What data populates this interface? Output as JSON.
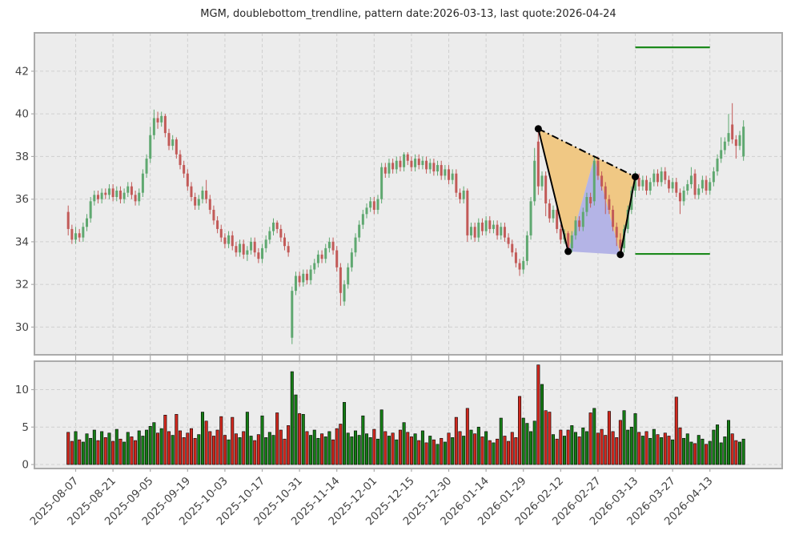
{
  "title": "MGM, doublebottom_trendline, pattern date:2026-03-13, last quote:2026-04-24",
  "colors": {
    "panel_bg": "#ececec",
    "grid": "#cfcfcf",
    "frame": "#ababab",
    "tick_text": "#444444",
    "candle_up": "#5fa870",
    "candle_down": "#c25a58",
    "vol_up": "#157d15",
    "vol_down": "#d0281e",
    "vol_edge": "#000000",
    "pattern_outer_fill": "#f0c884",
    "pattern_inner_fill": "#b4b4e6",
    "pattern_line": "#000000",
    "target_line": "#1c8a1c"
  },
  "chart_data": {
    "type": "candlestick+volume",
    "symbol": "MGM",
    "pattern": "doublebottom_trendline",
    "pattern_date": "2026-03-13",
    "last_quote_date": "2026-04-24",
    "price_axis": {
      "ticks": [
        30,
        32,
        34,
        36,
        38,
        40,
        42
      ],
      "range": [
        28.7,
        43.8
      ]
    },
    "volume_axis": {
      "ticks": [
        0,
        5,
        10
      ],
      "range": [
        0,
        14.3
      ]
    },
    "x_ticks": [
      {
        "label": "2025-08-07",
        "j": 2
      },
      {
        "label": "2025-08-21",
        "j": 12
      },
      {
        "label": "2025-09-05",
        "j": 22
      },
      {
        "label": "2025-09-19",
        "j": 32
      },
      {
        "label": "2025-10-03",
        "j": 42
      },
      {
        "label": "2025-10-17",
        "j": 52
      },
      {
        "label": "2025-10-31",
        "j": 62
      },
      {
        "label": "2025-11-14",
        "j": 72
      },
      {
        "label": "2025-12-01",
        "j": 82
      },
      {
        "label": "2025-12-15",
        "j": 92
      },
      {
        "label": "2025-12-30",
        "j": 102
      },
      {
        "label": "2026-01-14",
        "j": 112
      },
      {
        "label": "2026-01-29",
        "j": 122
      },
      {
        "label": "2026-02-12",
        "j": 132
      },
      {
        "label": "2026-02-27",
        "j": 142
      },
      {
        "label": "2026-03-13",
        "j": 152
      },
      {
        "label": "2026-03-27",
        "j": 162
      },
      {
        "label": "2026-04-13",
        "j": 172
      }
    ],
    "pattern_overlay": {
      "points": {
        "p1": {
          "j": 126,
          "price": 39.3
        },
        "b1": {
          "j": 134,
          "price": 33.55
        },
        "apex": {
          "j": 141,
          "price": 37.95
        },
        "b2": {
          "j": 148,
          "price": 33.4
        },
        "p5": {
          "j": 152,
          "price": 37.05
        }
      },
      "dots": [
        "p1",
        "b1",
        "b2",
        "p5"
      ],
      "target_lines": [
        {
          "price": 43.12,
          "from_j": 152,
          "to_j": 172
        },
        {
          "price": 33.43,
          "from_j": 152,
          "to_j": 172
        }
      ]
    },
    "candles": [
      [
        35.4,
        35.7,
        34.3,
        34.6
      ],
      [
        34.6,
        34.8,
        33.9,
        34.1
      ],
      [
        34.1,
        34.7,
        33.9,
        34.4
      ],
      [
        34.4,
        34.6,
        34.0,
        34.2
      ],
      [
        34.2,
        34.9,
        34.0,
        34.7
      ],
      [
        34.7,
        35.3,
        34.5,
        35.1
      ],
      [
        35.1,
        36.1,
        34.9,
        35.9
      ],
      [
        35.9,
        36.4,
        35.7,
        36.2
      ],
      [
        36.2,
        36.4,
        35.8,
        36.0
      ],
      [
        36.0,
        36.5,
        35.8,
        36.3
      ],
      [
        36.3,
        36.5,
        36.0,
        36.2
      ],
      [
        36.2,
        36.7,
        36.0,
        36.5
      ],
      [
        36.5,
        36.7,
        35.9,
        36.1
      ],
      [
        36.1,
        36.6,
        35.9,
        36.4
      ],
      [
        36.4,
        36.6,
        35.8,
        36.0
      ],
      [
        36.0,
        36.5,
        35.8,
        36.3
      ],
      [
        36.3,
        36.8,
        36.1,
        36.6
      ],
      [
        36.6,
        36.8,
        36.0,
        36.2
      ],
      [
        36.2,
        36.4,
        35.7,
        35.9
      ],
      [
        35.9,
        36.5,
        35.7,
        36.3
      ],
      [
        36.3,
        37.4,
        36.1,
        37.2
      ],
      [
        37.2,
        38.1,
        37.0,
        37.9
      ],
      [
        37.9,
        39.4,
        37.7,
        39.0
      ],
      [
        39.0,
        40.2,
        38.8,
        39.8
      ],
      [
        39.8,
        40.1,
        39.3,
        39.6
      ],
      [
        39.6,
        40.1,
        39.4,
        39.9
      ],
      [
        39.9,
        40.0,
        38.9,
        39.1
      ],
      [
        39.1,
        39.3,
        38.3,
        38.5
      ],
      [
        38.5,
        39.0,
        38.3,
        38.8
      ],
      [
        38.8,
        38.9,
        37.9,
        38.1
      ],
      [
        38.1,
        38.3,
        37.4,
        37.6
      ],
      [
        37.6,
        37.8,
        37.0,
        37.2
      ],
      [
        37.2,
        37.4,
        36.4,
        36.6
      ],
      [
        36.6,
        36.8,
        35.9,
        36.1
      ],
      [
        36.1,
        36.3,
        35.5,
        35.7
      ],
      [
        35.7,
        36.2,
        35.5,
        36.0
      ],
      [
        36.0,
        36.6,
        35.8,
        36.4
      ],
      [
        36.4,
        36.9,
        35.8,
        36.0
      ],
      [
        36.0,
        36.2,
        35.3,
        35.5
      ],
      [
        35.5,
        35.7,
        34.8,
        35.0
      ],
      [
        35.0,
        35.2,
        34.4,
        34.6
      ],
      [
        34.6,
        34.8,
        34.0,
        34.2
      ],
      [
        34.2,
        34.4,
        33.7,
        33.9
      ],
      [
        33.9,
        34.5,
        33.7,
        34.3
      ],
      [
        34.3,
        34.5,
        33.6,
        33.8
      ],
      [
        33.8,
        34.0,
        33.3,
        33.5
      ],
      [
        33.5,
        34.1,
        33.3,
        33.9
      ],
      [
        33.9,
        34.1,
        33.2,
        33.4
      ],
      [
        33.4,
        33.8,
        33.1,
        33.6
      ],
      [
        33.6,
        34.2,
        33.4,
        34.0
      ],
      [
        34.0,
        34.2,
        33.3,
        33.5
      ],
      [
        33.5,
        33.7,
        33.0,
        33.2
      ],
      [
        33.2,
        33.9,
        33.0,
        33.7
      ],
      [
        33.7,
        34.3,
        33.5,
        34.1
      ],
      [
        34.1,
        34.7,
        33.9,
        34.5
      ],
      [
        34.5,
        35.1,
        34.3,
        34.9
      ],
      [
        34.9,
        35.0,
        34.4,
        34.6
      ],
      [
        34.6,
        34.8,
        34.0,
        34.2
      ],
      [
        34.2,
        34.4,
        33.6,
        33.8
      ],
      [
        33.8,
        34.0,
        33.3,
        33.5
      ],
      [
        29.5,
        31.9,
        29.2,
        31.7
      ],
      [
        31.7,
        32.6,
        31.5,
        32.4
      ],
      [
        32.4,
        32.6,
        31.9,
        32.1
      ],
      [
        32.1,
        32.7,
        31.9,
        32.5
      ],
      [
        32.5,
        32.7,
        32.0,
        32.2
      ],
      [
        32.2,
        32.9,
        32.0,
        32.7
      ],
      [
        32.7,
        33.2,
        32.5,
        33.0
      ],
      [
        33.0,
        33.6,
        32.8,
        33.4
      ],
      [
        33.4,
        33.6,
        33.0,
        33.2
      ],
      [
        33.2,
        33.9,
        33.0,
        33.7
      ],
      [
        33.7,
        34.2,
        33.5,
        34.0
      ],
      [
        34.0,
        34.2,
        33.4,
        33.6
      ],
      [
        33.6,
        33.8,
        32.6,
        32.8
      ],
      [
        32.8,
        33.0,
        31.0,
        31.6
      ],
      [
        31.2,
        32.2,
        31.0,
        32.0
      ],
      [
        32.0,
        33.0,
        31.8,
        32.8
      ],
      [
        32.8,
        33.7,
        32.6,
        33.5
      ],
      [
        33.5,
        34.4,
        33.3,
        34.2
      ],
      [
        34.2,
        35.0,
        34.0,
        34.8
      ],
      [
        34.8,
        35.5,
        34.6,
        35.3
      ],
      [
        35.3,
        35.8,
        35.1,
        35.6
      ],
      [
        35.6,
        36.1,
        35.4,
        35.9
      ],
      [
        35.9,
        36.1,
        35.3,
        35.5
      ],
      [
        35.5,
        36.2,
        35.3,
        36.0
      ],
      [
        36.0,
        37.7,
        35.8,
        37.5
      ],
      [
        37.5,
        37.7,
        37.0,
        37.2
      ],
      [
        37.2,
        37.9,
        37.0,
        37.7
      ],
      [
        37.7,
        37.9,
        37.2,
        37.4
      ],
      [
        37.4,
        38.0,
        37.2,
        37.8
      ],
      [
        37.8,
        38.0,
        37.3,
        37.5
      ],
      [
        37.5,
        38.2,
        37.3,
        38.1
      ],
      [
        38.1,
        38.2,
        37.6,
        37.8
      ],
      [
        37.8,
        38.0,
        37.3,
        37.5
      ],
      [
        37.5,
        38.1,
        37.3,
        37.9
      ],
      [
        37.9,
        38.1,
        37.4,
        37.6
      ],
      [
        37.6,
        38.0,
        37.4,
        37.8
      ],
      [
        37.8,
        38.0,
        37.2,
        37.4
      ],
      [
        37.4,
        37.9,
        37.2,
        37.7
      ],
      [
        37.7,
        37.9,
        37.1,
        37.3
      ],
      [
        37.3,
        37.8,
        37.1,
        37.6
      ],
      [
        37.6,
        37.8,
        36.9,
        37.1
      ],
      [
        37.1,
        37.6,
        36.9,
        37.4
      ],
      [
        37.4,
        37.6,
        36.7,
        36.9
      ],
      [
        36.9,
        37.4,
        36.7,
        37.2
      ],
      [
        37.2,
        37.4,
        36.1,
        36.3
      ],
      [
        36.3,
        36.5,
        35.8,
        36.0
      ],
      [
        36.0,
        36.6,
        35.8,
        36.4
      ],
      [
        36.4,
        36.5,
        34.0,
        34.3
      ],
      [
        34.3,
        34.9,
        34.1,
        34.7
      ],
      [
        34.7,
        34.9,
        34.0,
        34.2
      ],
      [
        34.2,
        35.1,
        34.0,
        34.9
      ],
      [
        34.9,
        35.1,
        34.3,
        34.5
      ],
      [
        34.5,
        35.2,
        34.3,
        35.0
      ],
      [
        35.0,
        35.2,
        34.4,
        34.6
      ],
      [
        34.6,
        35.0,
        34.4,
        34.8
      ],
      [
        34.8,
        35.0,
        34.1,
        34.3
      ],
      [
        34.3,
        34.9,
        34.1,
        34.7
      ],
      [
        34.7,
        34.9,
        34.0,
        34.2
      ],
      [
        34.2,
        34.4,
        33.7,
        33.9
      ],
      [
        33.9,
        34.1,
        33.3,
        33.5
      ],
      [
        33.5,
        33.7,
        32.8,
        33.0
      ],
      [
        33.0,
        33.2,
        32.4,
        32.7
      ],
      [
        32.7,
        33.3,
        32.5,
        33.1
      ],
      [
        33.1,
        34.5,
        32.9,
        34.3
      ],
      [
        34.3,
        36.1,
        34.1,
        35.9
      ],
      [
        35.9,
        38.4,
        35.7,
        37.8
      ],
      [
        38.7,
        39.3,
        36.2,
        36.6
      ],
      [
        36.6,
        37.3,
        36.4,
        37.1
      ],
      [
        37.1,
        37.3,
        35.2,
        35.8
      ],
      [
        35.8,
        36.0,
        34.9,
        35.1
      ],
      [
        35.1,
        35.7,
        34.9,
        35.5
      ],
      [
        35.5,
        35.7,
        34.4,
        34.6
      ],
      [
        34.6,
        34.8,
        33.9,
        34.1
      ],
      [
        34.1,
        34.6,
        33.9,
        34.4
      ],
      [
        34.4,
        34.5,
        33.5,
        33.7
      ],
      [
        33.7,
        34.5,
        33.5,
        34.3
      ],
      [
        34.3,
        35.2,
        34.1,
        35.0
      ],
      [
        35.0,
        35.2,
        34.5,
        34.7
      ],
      [
        34.7,
        35.6,
        34.5,
        35.4
      ],
      [
        35.4,
        36.3,
        35.2,
        36.1
      ],
      [
        36.1,
        36.3,
        35.6,
        35.8
      ],
      [
        35.9,
        38.0,
        35.7,
        37.8
      ],
      [
        37.8,
        38.0,
        36.9,
        37.1
      ],
      [
        37.1,
        37.3,
        36.4,
        36.6
      ],
      [
        36.6,
        36.8,
        35.3,
        36.0
      ],
      [
        36.0,
        36.2,
        35.3,
        35.5
      ],
      [
        35.5,
        35.7,
        34.5,
        34.7
      ],
      [
        34.7,
        34.9,
        33.8,
        34.2
      ],
      [
        34.1,
        34.4,
        33.4,
        33.7
      ],
      [
        33.7,
        34.8,
        33.5,
        34.6
      ],
      [
        34.6,
        35.7,
        34.4,
        35.5
      ],
      [
        35.5,
        36.6,
        35.3,
        36.4
      ],
      [
        36.4,
        37.3,
        36.1,
        37.0
      ],
      [
        37.0,
        37.2,
        36.4,
        36.6
      ],
      [
        36.6,
        37.1,
        36.4,
        36.9
      ],
      [
        36.9,
        37.1,
        36.2,
        36.4
      ],
      [
        36.4,
        37.0,
        36.2,
        36.8
      ],
      [
        36.8,
        37.4,
        36.6,
        37.2
      ],
      [
        37.2,
        37.4,
        36.6,
        36.8
      ],
      [
        36.8,
        37.5,
        36.6,
        37.3
      ],
      [
        37.3,
        37.5,
        36.7,
        36.9
      ],
      [
        36.9,
        37.1,
        36.3,
        36.5
      ],
      [
        36.5,
        37.0,
        36.3,
        36.8
      ],
      [
        36.8,
        37.0,
        36.1,
        36.3
      ],
      [
        36.3,
        36.5,
        35.3,
        35.9
      ],
      [
        35.9,
        36.6,
        35.7,
        36.4
      ],
      [
        36.4,
        36.9,
        36.2,
        36.7
      ],
      [
        36.7,
        37.5,
        36.5,
        37.1
      ],
      [
        37.2,
        37.4,
        36.0,
        36.2
      ],
      [
        36.2,
        36.7,
        36.0,
        36.5
      ],
      [
        36.5,
        37.1,
        36.3,
        36.9
      ],
      [
        36.9,
        37.1,
        36.2,
        36.4
      ],
      [
        36.4,
        37.0,
        36.2,
        36.8
      ],
      [
        36.8,
        37.5,
        36.6,
        37.3
      ],
      [
        37.3,
        38.1,
        37.1,
        37.9
      ],
      [
        37.9,
        38.9,
        37.7,
        38.3
      ],
      [
        38.3,
        38.9,
        38.1,
        38.7
      ],
      [
        38.7,
        40.0,
        38.5,
        39.1
      ],
      [
        39.5,
        40.5,
        38.6,
        38.8
      ],
      [
        38.8,
        39.0,
        37.9,
        38.5
      ],
      [
        38.5,
        39.2,
        38.3,
        39.0
      ],
      [
        38.0,
        39.7,
        37.8,
        39.4
      ]
    ],
    "volumes": [
      4.3,
      3.1,
      4.4,
      3.3,
      3.0,
      4.1,
      3.5,
      4.6,
      3.2,
      4.4,
      3.6,
      4.2,
      3.1,
      4.7,
      3.4,
      3.0,
      4.3,
      3.7,
      3.2,
      4.5,
      3.8,
      4.6,
      5.1,
      5.6,
      4.2,
      4.8,
      6.6,
      4.4,
      3.9,
      6.7,
      4.5,
      3.6,
      4.2,
      4.8,
      3.5,
      4.0,
      7.0,
      5.8,
      4.4,
      3.8,
      4.6,
      6.4,
      3.9,
      3.3,
      6.3,
      4.1,
      3.6,
      4.4,
      7.0,
      3.8,
      3.2,
      4.0,
      6.5,
      3.6,
      4.3,
      3.9,
      6.9,
      4.6,
      3.4,
      5.2,
      12.4,
      9.3,
      6.8,
      6.7,
      4.4,
      3.9,
      4.6,
      3.5,
      4.1,
      3.7,
      4.4,
      3.3,
      4.8,
      5.4,
      8.3,
      4.2,
      3.7,
      4.5,
      3.9,
      6.5,
      4.1,
      3.6,
      4.7,
      3.4,
      7.3,
      4.4,
      3.8,
      4.2,
      3.3,
      4.6,
      5.6,
      4.3,
      3.7,
      4.1,
      3.2,
      4.5,
      2.9,
      3.8,
      3.3,
      2.7,
      3.5,
      3.0,
      4.2,
      3.6,
      6.3,
      4.4,
      3.8,
      7.5,
      4.6,
      4.1,
      5.0,
      3.7,
      4.4,
      3.2,
      2.9,
      3.4,
      6.2,
      3.8,
      3.1,
      4.3,
      3.6,
      9.1,
      6.2,
      5.5,
      4.4,
      5.8,
      13.3,
      10.7,
      7.2,
      7.0,
      4.0,
      3.4,
      4.6,
      3.8,
      4.6,
      5.2,
      4.3,
      3.7,
      4.9,
      4.4,
      6.9,
      7.5,
      4.2,
      4.7,
      3.9,
      7.1,
      4.4,
      3.6,
      5.9,
      7.2,
      4.6,
      5.0,
      6.8,
      4.3,
      3.8,
      4.4,
      3.5,
      4.7,
      4.0,
      3.6,
      4.2,
      3.8,
      3.3,
      9.0,
      4.9,
      3.5,
      4.1,
      3.0,
      2.8,
      3.9,
      3.4,
      2.7,
      3.1,
      4.6,
      5.3,
      2.9,
      3.7,
      5.9,
      4.1,
      3.2,
      3.0,
      3.4
    ]
  }
}
